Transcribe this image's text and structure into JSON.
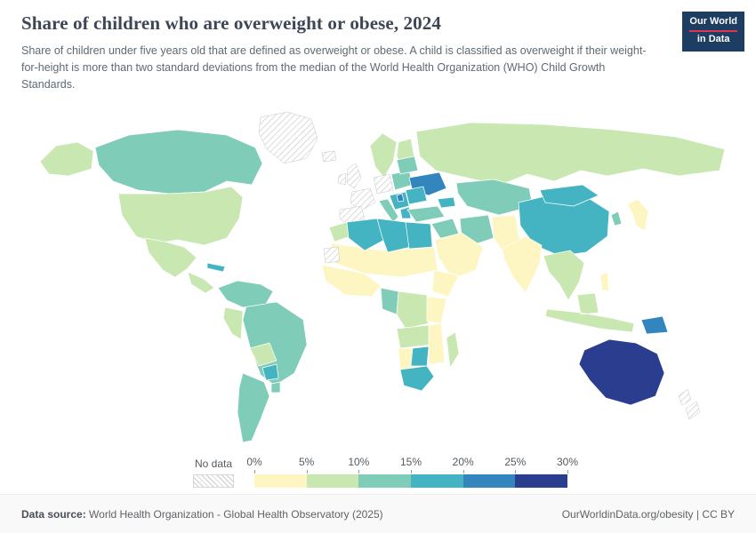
{
  "header": {
    "title": "Share of children who are overweight or obese, 2024",
    "subtitle": "Share of children under five years old that are defined as overweight or obese. A child is classified as overweight if their weight-for-height is more than two standard deviations from the median of the World Health Organization (WHO) Child Growth Standards.",
    "logo": {
      "line1": "Our World",
      "line2": "in Data",
      "bg_color": "#1d3d63",
      "accent_color": "#e0354e"
    }
  },
  "legend": {
    "no_data_label": "No data",
    "tick_labels": [
      "0%",
      "5%",
      "10%",
      "15%",
      "20%",
      "25%",
      "30%"
    ]
  },
  "footer": {
    "datasource_label": "Data source:",
    "datasource_text": " World Health Organization - Global Health Observatory (2025)",
    "credit": "OurWorldinData.org/obesity | CC BY"
  },
  "chart_data": {
    "type": "choropleth",
    "title": "Share of children who are overweight or obese, 2024",
    "year": "2024",
    "unit": "%",
    "legend_bins": [
      {
        "range": "0-5%",
        "color": "#fdf6c3"
      },
      {
        "range": "5-10%",
        "color": "#c9e7b1"
      },
      {
        "range": "10-15%",
        "color": "#7fccb9"
      },
      {
        "range": "15-20%",
        "color": "#45b4c2"
      },
      {
        "range": "20-25%",
        "color": "#3286bd"
      },
      {
        "range": "25-30%",
        "color": "#2b3d8f"
      }
    ],
    "no_data": {
      "label": "No data",
      "pattern": "diagonal-hatch",
      "line_color": "#cccccc"
    },
    "regions": [
      {
        "id": "alaska",
        "name": "Alaska (United States)",
        "bin": 1
      },
      {
        "id": "canada",
        "name": "Canada",
        "bin": 2
      },
      {
        "id": "greenland",
        "name": "Greenland",
        "bin": null
      },
      {
        "id": "usa",
        "name": "United States",
        "bin": 1
      },
      {
        "id": "mexico",
        "name": "Mexico",
        "bin": 1
      },
      {
        "id": "central-america",
        "name": "Central America",
        "bin": 1
      },
      {
        "id": "caribbean",
        "name": "Caribbean",
        "bin": 3
      },
      {
        "id": "colombia-venezuela",
        "name": "Colombia & Venezuela",
        "bin": 2
      },
      {
        "id": "peru",
        "name": "Peru",
        "bin": 1
      },
      {
        "id": "brazil",
        "name": "Brazil",
        "bin": 2
      },
      {
        "id": "bolivia",
        "name": "Bolivia",
        "bin": 1
      },
      {
        "id": "paraguay",
        "name": "Paraguay",
        "bin": 3
      },
      {
        "id": "argentina",
        "name": "Argentina & Chile",
        "bin": 2
      },
      {
        "id": "uruguay",
        "name": "Uruguay",
        "bin": 2
      },
      {
        "id": "iceland",
        "name": "Iceland",
        "bin": null
      },
      {
        "id": "uk",
        "name": "United Kingdom",
        "bin": null
      },
      {
        "id": "ireland",
        "name": "Ireland",
        "bin": null
      },
      {
        "id": "scandinavia",
        "name": "Norway & Sweden",
        "bin": 1
      },
      {
        "id": "finland",
        "name": "Finland",
        "bin": 1
      },
      {
        "id": "france",
        "name": "France",
        "bin": null
      },
      {
        "id": "germany",
        "name": "Germany",
        "bin": null
      },
      {
        "id": "iberia",
        "name": "Spain & Portugal",
        "bin": null
      },
      {
        "id": "italy",
        "name": "Italy",
        "bin": 2
      },
      {
        "id": "poland-central",
        "name": "Poland & Central Europe",
        "bin": 2
      },
      {
        "id": "baltics-belarus",
        "name": "Baltics & Belarus",
        "bin": 2
      },
      {
        "id": "balkans",
        "name": "Balkans",
        "bin": 3
      },
      {
        "id": "serbia",
        "name": "Serbia & Bosnia",
        "bin": 4
      },
      {
        "id": "greece",
        "name": "Greece",
        "bin": 3
      },
      {
        "id": "romania-bulgaria",
        "name": "Romania & Bulgaria",
        "bin": 3
      },
      {
        "id": "ukraine",
        "name": "Ukraine",
        "bin": 4
      },
      {
        "id": "russia",
        "name": "Russia",
        "bin": 1
      },
      {
        "id": "turkey",
        "name": "Turkey",
        "bin": 2
      },
      {
        "id": "caucasus",
        "name": "Caucasus",
        "bin": 3
      },
      {
        "id": "kazakhstan",
        "name": "Kazakhstan & Central Asia",
        "bin": 2
      },
      {
        "id": "iraq-syria",
        "name": "Iraq & Syria",
        "bin": 2
      },
      {
        "id": "middle-east",
        "name": "Arabian Peninsula",
        "bin": 0
      },
      {
        "id": "iran",
        "name": "Iran",
        "bin": 2
      },
      {
        "id": "af-pak",
        "name": "Afghanistan & Pakistan",
        "bin": 0
      },
      {
        "id": "india",
        "name": "India",
        "bin": 0
      },
      {
        "id": "china",
        "name": "China",
        "bin": 3
      },
      {
        "id": "mongolia",
        "name": "Mongolia",
        "bin": 3
      },
      {
        "id": "korea",
        "name": "Korea",
        "bin": 2
      },
      {
        "id": "japan",
        "name": "Japan",
        "bin": 0
      },
      {
        "id": "se-asia",
        "name": "Mainland Southeast Asia",
        "bin": 1
      },
      {
        "id": "philippines",
        "name": "Philippines",
        "bin": 0
      },
      {
        "id": "indonesia",
        "name": "Indonesia & Malaysia",
        "bin": 1
      },
      {
        "id": "png",
        "name": "Papua New Guinea",
        "bin": 4
      },
      {
        "id": "australia",
        "name": "Australia",
        "bin": 5
      },
      {
        "id": "new-zealand",
        "name": "New Zealand",
        "bin": null
      },
      {
        "id": "morocco",
        "name": "Morocco",
        "bin": 1
      },
      {
        "id": "algeria",
        "name": "Algeria",
        "bin": 3
      },
      {
        "id": "libya-tunisia",
        "name": "Libya & Tunisia",
        "bin": 3
      },
      {
        "id": "egypt",
        "name": "Egypt",
        "bin": 3
      },
      {
        "id": "western-sahara",
        "name": "Western Sahara",
        "bin": null
      },
      {
        "id": "sahel",
        "name": "Sahel (Mauritania-Sudan)",
        "bin": 0
      },
      {
        "id": "west-africa",
        "name": "West Africa",
        "bin": 0
      },
      {
        "id": "cameroon-gabon",
        "name": "Cameroon & Gabon",
        "bin": 2
      },
      {
        "id": "drc",
        "name": "DR Congo & Central Africa",
        "bin": 1
      },
      {
        "id": "horn",
        "name": "Ethiopia & Horn of Africa",
        "bin": 0
      },
      {
        "id": "kenya-tanzania",
        "name": "Kenya & Tanzania",
        "bin": 0
      },
      {
        "id": "angola-zambia",
        "name": "Angola & Zambia",
        "bin": 1
      },
      {
        "id": "namibia",
        "name": "Namibia",
        "bin": 0
      },
      {
        "id": "botswana",
        "name": "Botswana",
        "bin": 3
      },
      {
        "id": "south-africa",
        "name": "South Africa",
        "bin": 3
      },
      {
        "id": "mozambique",
        "name": "Mozambique & Zimbabwe",
        "bin": 0
      },
      {
        "id": "madagascar",
        "name": "Madagascar",
        "bin": 1
      }
    ]
  }
}
